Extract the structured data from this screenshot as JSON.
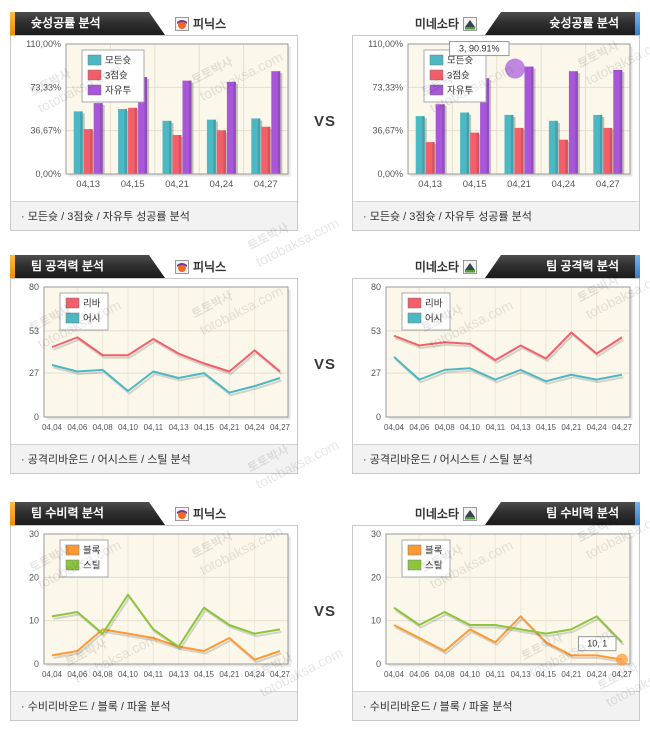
{
  "vs_label": "VS",
  "watermark": {
    "ko": "토토박사",
    "en": "totobaksa.com"
  },
  "colors": {
    "accent_left": "#ff9c00",
    "accent_right": "#4a9ae4",
    "banner_dark": "#2e2e2e",
    "all_shots": "#4cb8c4",
    "three_point": "#f25f6a",
    "free_throw": "#a757d8",
    "block": "#ff9933",
    "steal": "#8cc63f"
  },
  "chart_data": [
    {
      "panel": "top-left",
      "type": "bar",
      "header": "슛성공률 분석",
      "team": "피닉스",
      "caption": "· 모든슛 / 3점슛 / 자유투 성공률 분석",
      "categories": [
        "04,13",
        "04,15",
        "04,21",
        "04,24",
        "04,27"
      ],
      "series": [
        {
          "name": "모든슛",
          "color": "#4cb8c4",
          "values": [
            53,
            55,
            45,
            46,
            47
          ]
        },
        {
          "name": "3점슛",
          "color": "#f25f6a",
          "values": [
            38,
            56,
            33,
            37,
            40
          ]
        },
        {
          "name": "자유투",
          "color": "#a757d8",
          "values": [
            60,
            82,
            79,
            78,
            87
          ]
        }
      ],
      "ylim": [
        0,
        110
      ],
      "yticks": [
        {
          "v": 0,
          "label": "0,00%"
        },
        {
          "v": 36.67,
          "label": "36,67%"
        },
        {
          "v": 73.33,
          "label": "73,33%"
        },
        {
          "v": 110,
          "label": "110,00%"
        }
      ]
    },
    {
      "panel": "top-right",
      "type": "bar",
      "header": "슛성공률 분석",
      "team": "미네소타",
      "caption": "· 모든슛 / 3점슛 / 자유투 성공률 분석",
      "categories": [
        "04,13",
        "04,15",
        "04,21",
        "04,24",
        "04,27"
      ],
      "series": [
        {
          "name": "모든슛",
          "color": "#4cb8c4",
          "values": [
            49,
            52,
            50,
            45,
            50
          ]
        },
        {
          "name": "3점슛",
          "color": "#f25f6a",
          "values": [
            27,
            35,
            39,
            29,
            39
          ]
        },
        {
          "name": "자유투",
          "color": "#a757d8",
          "values": [
            59,
            81,
            90.91,
            87,
            88
          ]
        }
      ],
      "ylim": [
        0,
        110
      ],
      "yticks": [
        {
          "v": 0,
          "label": "0,00%"
        },
        {
          "v": 36.67,
          "label": "36,67%"
        },
        {
          "v": 73.33,
          "label": "73,33%"
        },
        {
          "v": 110,
          "label": "110,00%"
        }
      ],
      "highlight": {
        "series": 2,
        "index": 2,
        "label": "3, 90.91%",
        "r": 10,
        "dx": -14,
        "dy": 2
      }
    },
    {
      "panel": "middle-left",
      "type": "line",
      "header": "팀 공격력 분석",
      "team": "피닉스",
      "caption": "· 공격리바운드 / 어시스트 / 스틸 분석",
      "categories": [
        "04,04",
        "04,06",
        "04,08",
        "04,10",
        "04,11",
        "04,13",
        "04,15",
        "04,21",
        "04,24",
        "04,27"
      ],
      "series": [
        {
          "name": "리바",
          "color": "#f25f6a",
          "values": [
            43,
            49,
            38,
            38,
            48,
            39,
            33,
            28,
            41,
            28
          ]
        },
        {
          "name": "어시",
          "color": "#4cb8c4",
          "values": [
            32,
            28,
            29,
            16,
            28,
            24,
            27,
            15,
            19,
            24
          ]
        }
      ],
      "ylim": [
        0,
        80
      ],
      "yticks": [
        {
          "v": 0,
          "label": "0"
        },
        {
          "v": 27,
          "label": "27"
        },
        {
          "v": 53,
          "label": "53"
        },
        {
          "v": 80,
          "label": "80"
        }
      ]
    },
    {
      "panel": "middle-right",
      "type": "line",
      "header": "팀 공격력 분석",
      "team": "미네소타",
      "caption": "· 공격리바운드 / 어시스트 / 스틸 분석",
      "categories": [
        "04,04",
        "04,06",
        "04,08",
        "04,10",
        "04,11",
        "04,13",
        "04,15",
        "04,21",
        "04,24",
        "04,27"
      ],
      "series": [
        {
          "name": "리바",
          "color": "#f25f6a",
          "values": [
            50,
            44,
            46,
            45,
            35,
            44,
            36,
            52,
            39,
            49
          ]
        },
        {
          "name": "어시",
          "color": "#4cb8c4",
          "values": [
            37,
            23,
            29,
            30,
            23,
            29,
            22,
            26,
            23,
            26
          ]
        }
      ],
      "ylim": [
        0,
        80
      ],
      "yticks": [
        {
          "v": 0,
          "label": "0"
        },
        {
          "v": 27,
          "label": "27"
        },
        {
          "v": 53,
          "label": "53"
        },
        {
          "v": 80,
          "label": "80"
        }
      ]
    },
    {
      "panel": "bottom-left",
      "type": "line",
      "header": "팀 수비력 분석",
      "team": "피닉스",
      "caption": "· 수비리바운드 / 블록 / 파울 분석",
      "categories": [
        "04,04",
        "04,06",
        "04,08",
        "04,10",
        "04,11",
        "04,13",
        "04,15",
        "04,21",
        "04,24",
        "04,27"
      ],
      "series": [
        {
          "name": "블록",
          "color": "#ff9933",
          "values": [
            2,
            3,
            8,
            7,
            6,
            4,
            3,
            6,
            1,
            3
          ]
        },
        {
          "name": "스틸",
          "color": "#8cc63f",
          "values": [
            11,
            12,
            7,
            16,
            8,
            4,
            13,
            9,
            7,
            8
          ]
        }
      ],
      "ylim": [
        0,
        30
      ],
      "yticks": [
        {
          "v": 0,
          "label": "0"
        },
        {
          "v": 10,
          "label": "10"
        },
        {
          "v": 20,
          "label": "20"
        },
        {
          "v": 30,
          "label": "30"
        }
      ]
    },
    {
      "panel": "bottom-right",
      "type": "line",
      "header": "팀 수비력 분석",
      "team": "미네소타",
      "caption": "· 수비리바운드 / 블록 / 파울 분석",
      "categories": [
        "04,04",
        "04,06",
        "04,08",
        "04,10",
        "04,11",
        "04,13",
        "04,15",
        "04,21",
        "04,24",
        "04,27"
      ],
      "series": [
        {
          "name": "블록",
          "color": "#ff9933",
          "values": [
            9,
            6,
            3,
            8,
            5,
            11,
            5,
            2,
            2,
            1
          ]
        },
        {
          "name": "스틸",
          "color": "#8cc63f",
          "values": [
            13,
            9,
            12,
            9,
            9,
            8,
            7,
            8,
            11,
            5
          ]
        }
      ],
      "ylim": [
        0,
        30
      ],
      "yticks": [
        {
          "v": 0,
          "label": "0"
        },
        {
          "v": 10,
          "label": "10"
        },
        {
          "v": 20,
          "label": "20"
        },
        {
          "v": 30,
          "label": "30"
        }
      ],
      "highlight": {
        "series": 0,
        "index": 9,
        "label": "10, 1",
        "r": 6,
        "dx": 0,
        "dy": 0
      }
    }
  ]
}
